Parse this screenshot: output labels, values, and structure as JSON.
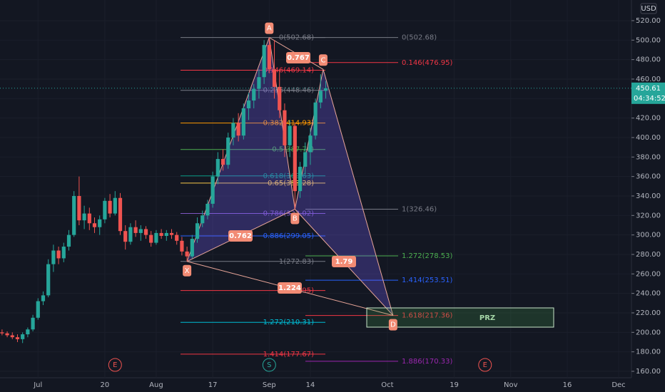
{
  "chart_data": {
    "type": "candlestick",
    "currency": "USD",
    "last_price": 450.61,
    "countdown": "04:34:52",
    "up_color": "#26a69a",
    "down_color": "#ef5350",
    "grid": true,
    "xlim": [
      -0.4,
      122.5
    ],
    "ylim": [
      153.4,
      541.2
    ],
    "xticks": [
      {
        "value": 7,
        "label": "Jul"
      },
      {
        "value": 20,
        "label": "20"
      },
      {
        "value": 30,
        "label": "Aug"
      },
      {
        "value": 41,
        "label": "17"
      },
      {
        "value": 52,
        "label": "Sep"
      },
      {
        "value": 60,
        "label": "14"
      },
      {
        "value": 75,
        "label": "Oct"
      },
      {
        "value": 88,
        "label": "19"
      },
      {
        "value": 99,
        "label": "Nov"
      },
      {
        "value": 110,
        "label": "16"
      },
      {
        "value": 120,
        "label": "Dec"
      }
    ],
    "yticks": [
      {
        "value": 160,
        "label": "160.00"
      },
      {
        "value": 180,
        "label": "180.00"
      },
      {
        "value": 200,
        "label": "200.00"
      },
      {
        "value": 220,
        "label": "220.00"
      },
      {
        "value": 240,
        "label": "240.00"
      },
      {
        "value": 260,
        "label": "260.00"
      },
      {
        "value": 280,
        "label": "280.00"
      },
      {
        "value": 300,
        "label": "300.00"
      },
      {
        "value": 320,
        "label": "320.00"
      },
      {
        "value": 340,
        "label": "340.00"
      },
      {
        "value": 360,
        "label": "360.00"
      },
      {
        "value": 380,
        "label": "380.00"
      },
      {
        "value": 400,
        "label": "400.00"
      },
      {
        "value": 420,
        "label": "420.00"
      },
      {
        "value": 440,
        "label": "440.00"
      },
      {
        "value": 460,
        "label": "460.00"
      },
      {
        "value": 480,
        "label": "480.00"
      },
      {
        "value": 500,
        "label": "500.00"
      },
      {
        "value": 520,
        "label": "520.00"
      }
    ],
    "x": [
      0,
      1,
      2,
      3,
      4,
      5,
      6,
      7,
      8,
      9,
      10,
      11,
      12,
      13,
      14,
      15,
      16,
      17,
      18,
      19,
      20,
      21,
      22,
      23,
      24,
      25,
      26,
      27,
      28,
      29,
      30,
      31,
      32,
      33,
      34,
      35,
      36,
      37,
      38,
      39,
      40,
      41,
      42,
      43,
      44,
      45,
      46,
      47,
      48,
      49,
      50,
      51,
      52,
      53,
      54,
      55,
      56,
      57,
      58,
      59,
      60,
      61,
      62,
      63
    ],
    "open": [
      200,
      199,
      197,
      195,
      193,
      198,
      203,
      215,
      232,
      238,
      270,
      284,
      276,
      288,
      300,
      340,
      315,
      322,
      312,
      308,
      316,
      335,
      322,
      338,
      304,
      293,
      308,
      302,
      306,
      300,
      292,
      302,
      299,
      302,
      300,
      294,
      283,
      278,
      296,
      312,
      320,
      332,
      360,
      378,
      372,
      400,
      415,
      402,
      430,
      438,
      450,
      462,
      495,
      470,
      452,
      428,
      392,
      412,
      345,
      370,
      385,
      402,
      436,
      448
    ],
    "high": [
      203,
      201,
      200,
      198,
      200,
      205,
      218,
      235,
      242,
      275,
      290,
      288,
      292,
      305,
      345,
      360,
      330,
      328,
      318,
      320,
      338,
      342,
      345,
      343,
      310,
      312,
      315,
      310,
      309,
      304,
      305,
      306,
      305,
      306,
      303,
      298,
      288,
      300,
      318,
      325,
      336,
      365,
      385,
      388,
      405,
      420,
      425,
      435,
      446,
      455,
      470,
      500,
      502.68,
      500,
      470,
      435,
      418,
      415,
      375,
      395,
      410,
      440,
      465,
      458
    ],
    "low": [
      197,
      195,
      193,
      190,
      189,
      195,
      201,
      213,
      228,
      236,
      262,
      270,
      272,
      284,
      298,
      310,
      306,
      305,
      302,
      300,
      312,
      318,
      320,
      300,
      285,
      290,
      298,
      294,
      296,
      288,
      290,
      296,
      294,
      296,
      290,
      279,
      272.83,
      276,
      292,
      308,
      316,
      328,
      352,
      366,
      368,
      392,
      396,
      398,
      418,
      430,
      440,
      455,
      466,
      440,
      420,
      380,
      380,
      326.46,
      338,
      362,
      372,
      398,
      430,
      440
    ],
    "close": [
      199,
      197,
      195,
      193,
      198,
      203,
      215,
      232,
      238,
      270,
      284,
      276,
      288,
      300,
      340,
      315,
      322,
      312,
      308,
      316,
      335,
      322,
      338,
      304,
      293,
      308,
      302,
      306,
      300,
      292,
      302,
      299,
      302,
      300,
      294,
      283,
      278,
      296,
      312,
      320,
      332,
      360,
      378,
      372,
      400,
      415,
      402,
      430,
      438,
      450,
      462,
      495,
      470,
      452,
      428,
      392,
      412,
      345,
      370,
      385,
      402,
      436,
      448,
      450.61
    ],
    "pattern": [
      {
        "label": "X",
        "x": 36,
        "y": 272.83
      },
      {
        "label": "A",
        "x": 52,
        "y": 502.68
      },
      {
        "label": "B",
        "x": 57,
        "y": 326.46
      },
      {
        "label": "C",
        "x": 62.5,
        "y": 470
      },
      {
        "label": "D",
        "x": 76.1,
        "y": 217.36
      }
    ],
    "ratios": [
      "0.762",
      "0.767",
      "1.79",
      "1.224"
    ],
    "fib_left": [
      {
        "label": "0(502.68)",
        "value": 502.68,
        "color": "#787b86"
      },
      {
        "label": "0.146(469.14)",
        "value": 469.14,
        "color": "#f23645"
      },
      {
        "label": "0.236(448.46)",
        "value": 448.46,
        "color": "#787b86"
      },
      {
        "label": "0.382(414.93)",
        "value": 414.93,
        "color": "#ff9800"
      },
      {
        "label": "0.5(387.76)",
        "value": 387.76,
        "color": "#4caf50"
      },
      {
        "label": "0.618(360.63)",
        "value": 360.63,
        "color": "#089981"
      },
      {
        "label": "0.65(353.28)",
        "value": 353.28,
        "color": "#f7c948"
      },
      {
        "label": "0.786(322.02)",
        "value": 322.02,
        "color": "#7e57c2"
      },
      {
        "label": "0.886(299.05)",
        "value": 299.05,
        "color": "#2962ff"
      },
      {
        "label": "1(272.83)",
        "value": 272.83,
        "color": "#787b86"
      },
      {
        "label": "(242.95)",
        "value": 242.95,
        "color": "#f23645"
      },
      {
        "label": "1.272(210.31)",
        "value": 210.31,
        "color": "#00bcd4"
      },
      {
        "label": "1.414(177.67)",
        "value": 177.67,
        "color": "#f23645"
      }
    ],
    "fib_right": [
      {
        "label": "0(502.68)",
        "value": 502.68,
        "color": "#787b86"
      },
      {
        "label": "0.146(476.95)",
        "value": 476.95,
        "color": "#f23645"
      },
      {
        "label": "1(326.46)",
        "value": 326.46,
        "color": "#787b86"
      },
      {
        "label": "1.272(278.53)",
        "value": 278.53,
        "color": "#4caf50"
      },
      {
        "label": "1.414(253.51)",
        "value": 253.51,
        "color": "#2962ff"
      },
      {
        "label": "1.618(217.36)",
        "value": 217.36,
        "color": "#f23645"
      },
      {
        "label": "1.886(170.33)",
        "value": 170.33,
        "color": "#9c27b0"
      }
    ],
    "prz": "PRZ",
    "events": [
      {
        "label": "E",
        "x": 22
      },
      {
        "label": "S",
        "x": 52
      },
      {
        "label": "E",
        "x": 94
      }
    ]
  }
}
